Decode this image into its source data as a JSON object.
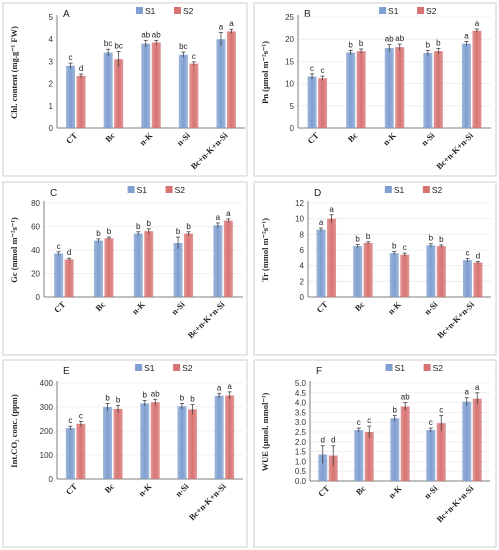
{
  "colors": {
    "S1": "#7f9fd0",
    "S2": "#d77473"
  },
  "chart_data": [
    {
      "type": "bar",
      "panel": "A",
      "ylabel": "Chl. content (mg.g⁻¹ FW)",
      "categories": [
        "CT",
        "Bc",
        "n-K",
        "n-Si",
        "Bc+n-K+n-Si"
      ],
      "ylim": [
        0,
        5
      ],
      "yticks": [
        0,
        1,
        2,
        3,
        4,
        5
      ],
      "decimals": 0,
      "legend": "top-center",
      "grid": false,
      "series": [
        {
          "name": "S1",
          "values": [
            2.8,
            3.4,
            3.8,
            3.3,
            4.0
          ],
          "errors": [
            0.12,
            0.15,
            0.15,
            0.12,
            0.3
          ],
          "letters": [
            "c",
            "bc",
            "ab",
            "bc",
            "a"
          ]
        },
        {
          "name": "S2",
          "values": [
            2.35,
            3.1,
            3.85,
            2.9,
            4.35
          ],
          "errors": [
            0.08,
            0.35,
            0.1,
            0.08,
            0.1
          ],
          "letters": [
            "d",
            "bc",
            "ab",
            "c",
            "a"
          ]
        }
      ]
    },
    {
      "type": "bar",
      "panel": "B",
      "ylabel": "Pn (μmol m⁻²s⁻¹)",
      "categories": [
        "CT",
        "Bc",
        "n-K",
        "n-Si",
        "Bc+n-K+n-Si"
      ],
      "ylim": [
        0,
        25
      ],
      "yticks": [
        0,
        5,
        10,
        15,
        20,
        25
      ],
      "decimals": 0,
      "legend": "top-center",
      "grid": true,
      "series": [
        {
          "name": "S1",
          "values": [
            11.6,
            17.0,
            18.0,
            16.9,
            19.0
          ],
          "errors": [
            0.6,
            0.5,
            0.8,
            0.6,
            0.5
          ],
          "letters": [
            "c",
            "b",
            "ab",
            "b",
            "a"
          ]
        },
        {
          "name": "S2",
          "values": [
            11.2,
            17.3,
            18.2,
            17.3,
            21.9
          ],
          "errors": [
            0.5,
            0.5,
            0.7,
            0.6,
            0.4
          ],
          "letters": [
            "c",
            "b",
            "ab",
            "b",
            "a"
          ]
        }
      ]
    },
    {
      "type": "bar",
      "panel": "C",
      "ylabel": "Gc (mmol m⁻²s⁻¹)",
      "categories": [
        "CT",
        "Bc",
        "n-K",
        "n-Si",
        "Bc+n-K+n-Si"
      ],
      "ylim": [
        0,
        80
      ],
      "yticks": [
        0,
        20,
        40,
        60,
        80
      ],
      "decimals": 0,
      "legend": "top-center",
      "grid": true,
      "series": [
        {
          "name": "S1",
          "values": [
            37,
            48,
            54,
            46,
            61
          ],
          "errors": [
            1.5,
            1.5,
            1.5,
            5,
            2
          ],
          "letters": [
            "c",
            "b",
            "b",
            "b",
            "a"
          ]
        },
        {
          "name": "S2",
          "values": [
            32,
            50,
            56,
            54,
            65
          ],
          "errors": [
            1.0,
            1.0,
            2,
            1.5,
            1.5
          ],
          "letters": [
            "d",
            "b",
            "b",
            "b",
            "a"
          ]
        }
      ]
    },
    {
      "type": "bar",
      "panel": "D",
      "ylabel": "Tr (mmol m⁻²s⁻¹)",
      "categories": [
        "CT",
        "Bc",
        "n-K",
        "n-Si",
        "Bc+n-K+n-Si"
      ],
      "ylim": [
        0,
        12
      ],
      "yticks": [
        0,
        2,
        4,
        6,
        8,
        10,
        12
      ],
      "decimals": 0,
      "legend": "top-center",
      "grid": true,
      "series": [
        {
          "name": "S1",
          "values": [
            8.6,
            6.5,
            5.6,
            6.6,
            4.7
          ],
          "errors": [
            0.2,
            0.2,
            0.2,
            0.2,
            0.2
          ],
          "letters": [
            "a",
            "b",
            "b",
            "b",
            "c"
          ]
        },
        {
          "name": "S2",
          "values": [
            10.0,
            6.9,
            5.4,
            6.5,
            4.4
          ],
          "errors": [
            0.5,
            0.15,
            0.2,
            0.15,
            0.15
          ],
          "letters": [
            "a",
            "b",
            "c",
            "b",
            "d"
          ]
        }
      ]
    },
    {
      "type": "bar",
      "panel": "E",
      "ylabel": "Int.CO₂ conc. (ppm)",
      "categories": [
        "CT",
        "Bc",
        "n-K",
        "n-Si",
        "Bc+n-K+n-Si"
      ],
      "ylim": [
        0,
        400
      ],
      "yticks": [
        0,
        100,
        200,
        300,
        400
      ],
      "decimals": 0,
      "legend": "top-center",
      "grid": true,
      "series": [
        {
          "name": "S1",
          "values": [
            212,
            300,
            315,
            303,
            347
          ],
          "errors": [
            8,
            15,
            12,
            12,
            10
          ],
          "letters": [
            "c",
            "b",
            "b",
            "b",
            "a"
          ]
        },
        {
          "name": "S2",
          "values": [
            230,
            292,
            320,
            290,
            348
          ],
          "errors": [
            10,
            15,
            12,
            20,
            15
          ],
          "letters": [
            "c",
            "b",
            "ab",
            "b",
            "a"
          ]
        }
      ]
    },
    {
      "type": "bar",
      "panel": "F",
      "ylabel": "WUE (μmol. mmol⁻¹)",
      "categories": [
        "CT",
        "Bc",
        "n-K",
        "n-Si",
        "Bc+n-K+n-Si"
      ],
      "ylim": [
        0,
        5
      ],
      "yticks": [
        0,
        0.5,
        1,
        1.5,
        2,
        2.5,
        3,
        3.5,
        4,
        4.5,
        5
      ],
      "decimals": 1,
      "legend": "top-center",
      "grid": true,
      "series": [
        {
          "name": "S1",
          "values": [
            1.35,
            2.6,
            3.2,
            2.6,
            4.05
          ],
          "errors": [
            0.45,
            0.1,
            0.15,
            0.1,
            0.2
          ],
          "letters": [
            "d",
            "c",
            "b",
            "c",
            "a"
          ]
        },
        {
          "name": "S2",
          "values": [
            1.3,
            2.5,
            3.8,
            2.95,
            4.2
          ],
          "errors": [
            0.5,
            0.3,
            0.2,
            0.4,
            0.3
          ],
          "letters": [
            "d",
            "c",
            "ab",
            "c",
            "a"
          ]
        }
      ]
    }
  ]
}
